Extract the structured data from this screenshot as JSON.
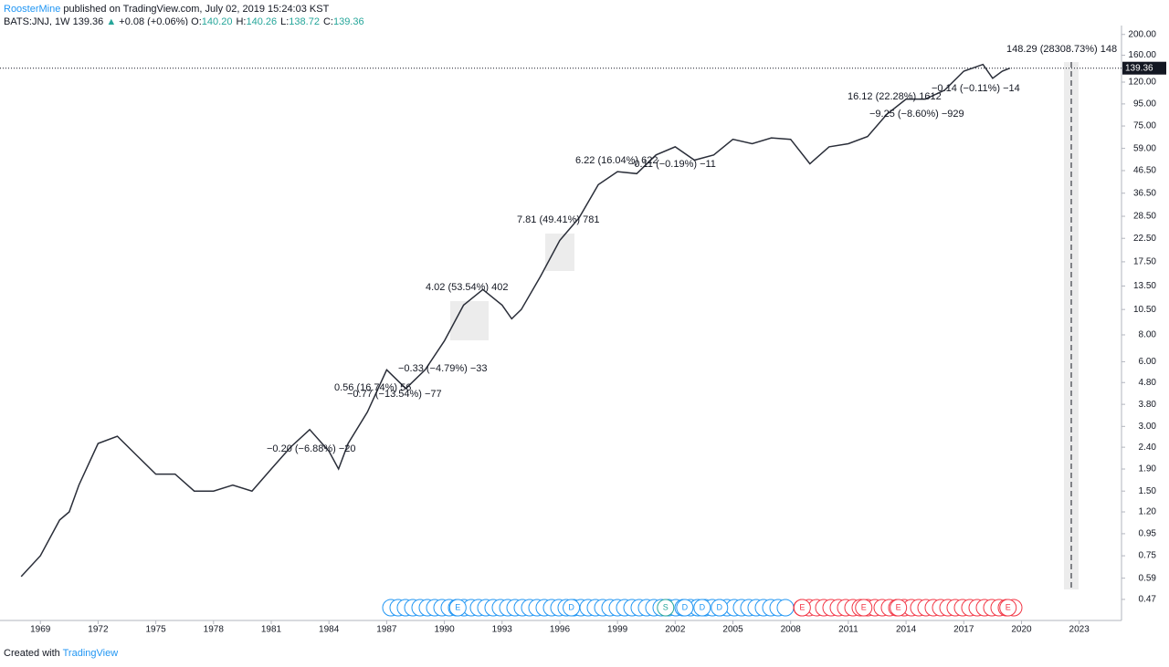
{
  "header": {
    "author": "RoosterMine",
    "published": "published on TradingView.com, July 02, 2019 15:24:03 KST",
    "symbol": "BATS:JNJ, 1W",
    "price": "139.36",
    "arrow": "▲",
    "change": "+0.08 (+0.06%)",
    "ohlc": [
      {
        "label": "O:",
        "value": "140.20"
      },
      {
        "label": "H:",
        "value": "140.26"
      },
      {
        "label": "L:",
        "value": "138.72"
      },
      {
        "label": "C:",
        "value": "139.36"
      }
    ]
  },
  "footer": {
    "created": "Created with",
    "brand": "TradingView"
  },
  "chart_data": {
    "type": "line",
    "log_scale": true,
    "x": [
      1968,
      1969,
      1970,
      1970.5,
      1971,
      1972,
      1973,
      1974,
      1975,
      1976,
      1977,
      1978,
      1979,
      1980,
      1981,
      1982,
      1983,
      1984,
      1984.5,
      1985,
      1986,
      1987,
      1988,
      1989,
      1990,
      1991,
      1992,
      1993,
      1993.5,
      1994,
      1995,
      1996,
      1997,
      1998,
      1999,
      2000,
      2001,
      2002,
      2003,
      2004,
      2005,
      2006,
      2007,
      2008,
      2009,
      2010,
      2011,
      2012,
      2013,
      2014,
      2015,
      2016,
      2017,
      2018,
      2018.5,
      2019,
      2019.4
    ],
    "series": [
      {
        "color": "#2a2e39",
        "values": [
          0.6,
          0.75,
          1.1,
          1.2,
          1.6,
          2.5,
          2.7,
          2.2,
          1.8,
          1.8,
          1.5,
          1.5,
          1.6,
          1.5,
          1.9,
          2.4,
          2.9,
          2.3,
          1.9,
          2.5,
          3.5,
          5.5,
          4.5,
          5.5,
          7.5,
          11,
          13,
          11,
          9.5,
          10.5,
          15,
          22,
          28,
          40,
          46,
          45,
          55,
          60,
          52,
          55,
          65,
          62,
          66,
          65,
          50,
          60,
          62,
          67,
          85,
          100,
          100,
          110,
          135,
          145,
          125,
          135,
          139.36
        ]
      }
    ],
    "last_price": 139.36,
    "xlim": [
      1966.9,
      2025.2
    ],
    "xticks": [
      1969,
      1972,
      1975,
      1978,
      1981,
      1984,
      1987,
      1990,
      1993,
      1996,
      1999,
      2002,
      2005,
      2008,
      2011,
      2014,
      2017,
      2020,
      2023
    ],
    "ylim": [
      0.375,
      220
    ],
    "yticks": [
      {
        "value": 200,
        "label": "200.00"
      },
      {
        "value": 160,
        "label": "160.00"
      },
      {
        "value": 120,
        "label": "120.00"
      },
      {
        "value": 95,
        "label": "95.00"
      },
      {
        "value": 75,
        "label": "75.00"
      },
      {
        "value": 59,
        "label": "59.00"
      },
      {
        "value": 46.5,
        "label": "46.50"
      },
      {
        "value": 36.5,
        "label": "36.50"
      },
      {
        "value": 28.5,
        "label": "28.50"
      },
      {
        "value": 22.5,
        "label": "22.50"
      },
      {
        "value": 17.5,
        "label": "17.50"
      },
      {
        "value": 13.5,
        "label": "13.50"
      },
      {
        "value": 10.5,
        "label": "10.50"
      },
      {
        "value": 8,
        "label": "8.00"
      },
      {
        "value": 6,
        "label": "6.00"
      },
      {
        "value": 4.8,
        "label": "4.80"
      },
      {
        "value": 3.8,
        "label": "3.80"
      },
      {
        "value": 3,
        "label": "3.00"
      },
      {
        "value": 2.4,
        "label": "2.40"
      },
      {
        "value": 1.9,
        "label": "1.90"
      },
      {
        "value": 1.5,
        "label": "1.50"
      },
      {
        "value": 1.2,
        "label": "1.20"
      },
      {
        "value": 0.95,
        "label": "0.95"
      },
      {
        "value": 0.75,
        "label": "0.75"
      },
      {
        "value": 0.59,
        "label": "0.59"
      },
      {
        "value": 0.47,
        "label": "0.47"
      }
    ],
    "annotations": [
      "148.29 (28308.73%) 148",
      "16.12 (22.28%) 1612",
      "−0.14 (−0.11%) −14",
      "−9.25 (−8.60%) −929",
      "6.22 (16.04%) 622",
      "−0.11 (−0.19%) −11",
      "7.81 (49.41%) 781",
      "4.02 (53.54%) 402",
      "−0.33 (−4.79%) −33",
      "0.56 (16.74%) 56",
      "−0.77 (−13.54%) −77",
      "−0.20 (−6.88%) −20"
    ],
    "events": [
      {
        "x": 1990.7,
        "label": "E"
      },
      {
        "x": 1996.6,
        "label": "D"
      },
      {
        "x": 2001.5,
        "label": "S"
      },
      {
        "x": 2002.5,
        "label": "D"
      },
      {
        "x": 2003.4,
        "label": "D"
      },
      {
        "x": 2004.3,
        "label": "D"
      },
      {
        "x": 2008.6,
        "label": "E"
      },
      {
        "x": 2011.8,
        "label": "E"
      },
      {
        "x": 2013.6,
        "label": "E"
      },
      {
        "x": 2019.3,
        "label": "E"
      }
    ]
  }
}
